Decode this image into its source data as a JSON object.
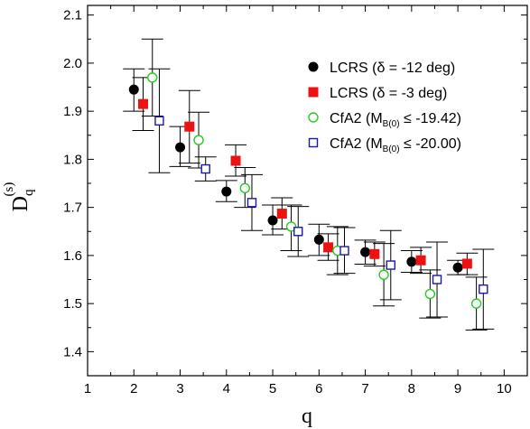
{
  "chart_data": {
    "type": "scatter",
    "xlabel": "q",
    "ylabel": "D",
    "ylabel_sub": "q",
    "ylabel_sup": "(s)",
    "xlim": [
      1,
      10.5
    ],
    "ylim": [
      1.35,
      2.12
    ],
    "x_ticks": [
      "1",
      "2",
      "3",
      "4",
      "5",
      "6",
      "7",
      "8",
      "9",
      "10"
    ],
    "y_ticks": [
      "1.4",
      "1.5",
      "1.6",
      "1.7",
      "1.8",
      "1.9",
      "2.0",
      "2.1"
    ],
    "legend": {
      "position": "top-right",
      "entries": [
        {
          "pre": "LCRS (δ = -12 deg)",
          "sub": "",
          "post": ""
        },
        {
          "pre": "LCRS (δ = -3 deg)",
          "sub": "",
          "post": ""
        },
        {
          "pre": "CfA2 (M",
          "sub": "B(0)",
          "post": " ≤ -19.42)"
        },
        {
          "pre": "CfA2 (M",
          "sub": "B(0)",
          "post": " ≤ -20.00)"
        }
      ]
    },
    "series": [
      {
        "marker": "filled-circle",
        "color": "#000000",
        "points": [
          {
            "x": 2.0,
            "y": 1.945,
            "lo": 1.9,
            "hi": 1.988
          },
          {
            "x": 3.0,
            "y": 1.825,
            "lo": 1.785,
            "hi": 1.868
          },
          {
            "x": 4.0,
            "y": 1.733,
            "lo": 1.712,
            "hi": 1.756
          },
          {
            "x": 5.0,
            "y": 1.673,
            "lo": 1.643,
            "hi": 1.705
          },
          {
            "x": 6.0,
            "y": 1.633,
            "lo": 1.6,
            "hi": 1.665
          },
          {
            "x": 7.0,
            "y": 1.607,
            "lo": 1.582,
            "hi": 1.632
          },
          {
            "x": 8.0,
            "y": 1.587,
            "lo": 1.565,
            "hi": 1.61
          },
          {
            "x": 9.0,
            "y": 1.575,
            "lo": 1.56,
            "hi": 1.59
          }
        ]
      },
      {
        "marker": "filled-square",
        "color": "#ee1111",
        "points": [
          {
            "x": 2.2,
            "y": 1.915,
            "lo": 1.86,
            "hi": 1.97
          },
          {
            "x": 3.2,
            "y": 1.868,
            "lo": 1.792,
            "hi": 1.943
          },
          {
            "x": 4.2,
            "y": 1.797,
            "lo": 1.765,
            "hi": 1.83
          },
          {
            "x": 5.2,
            "y": 1.687,
            "lo": 1.655,
            "hi": 1.72
          },
          {
            "x": 6.2,
            "y": 1.617,
            "lo": 1.59,
            "hi": 1.645
          },
          {
            "x": 7.2,
            "y": 1.603,
            "lo": 1.578,
            "hi": 1.628
          },
          {
            "x": 8.2,
            "y": 1.59,
            "lo": 1.563,
            "hi": 1.617
          },
          {
            "x": 9.2,
            "y": 1.583,
            "lo": 1.56,
            "hi": 1.605
          }
        ]
      },
      {
        "marker": "open-circle",
        "color": "#22cc22",
        "points": [
          {
            "x": 2.4,
            "y": 1.97,
            "lo": 1.89,
            "hi": 2.05
          },
          {
            "x": 3.4,
            "y": 1.84,
            "lo": 1.782,
            "hi": 1.898
          },
          {
            "x": 4.4,
            "y": 1.74,
            "lo": 1.7,
            "hi": 1.783
          },
          {
            "x": 5.4,
            "y": 1.66,
            "lo": 1.61,
            "hi": 1.705
          },
          {
            "x": 6.4,
            "y": 1.61,
            "lo": 1.56,
            "hi": 1.66
          },
          {
            "x": 7.4,
            "y": 1.56,
            "lo": 1.495,
            "hi": 1.625
          },
          {
            "x": 8.4,
            "y": 1.52,
            "lo": 1.47,
            "hi": 1.57
          },
          {
            "x": 9.4,
            "y": 1.5,
            "lo": 1.445,
            "hi": 1.555
          }
        ]
      },
      {
        "marker": "open-square",
        "color": "#1a1aaa",
        "points": [
          {
            "x": 2.55,
            "y": 1.88,
            "lo": 1.772,
            "hi": 1.988
          },
          {
            "x": 3.55,
            "y": 1.78,
            "lo": 1.755,
            "hi": 1.805
          },
          {
            "x": 4.55,
            "y": 1.71,
            "lo": 1.652,
            "hi": 1.768
          },
          {
            "x": 5.55,
            "y": 1.65,
            "lo": 1.598,
            "hi": 1.702
          },
          {
            "x": 6.55,
            "y": 1.61,
            "lo": 1.563,
            "hi": 1.658
          },
          {
            "x": 7.55,
            "y": 1.58,
            "lo": 1.508,
            "hi": 1.652
          },
          {
            "x": 8.55,
            "y": 1.55,
            "lo": 1.472,
            "hi": 1.628
          },
          {
            "x": 9.55,
            "y": 1.53,
            "lo": 1.447,
            "hi": 1.613
          }
        ]
      }
    ]
  }
}
